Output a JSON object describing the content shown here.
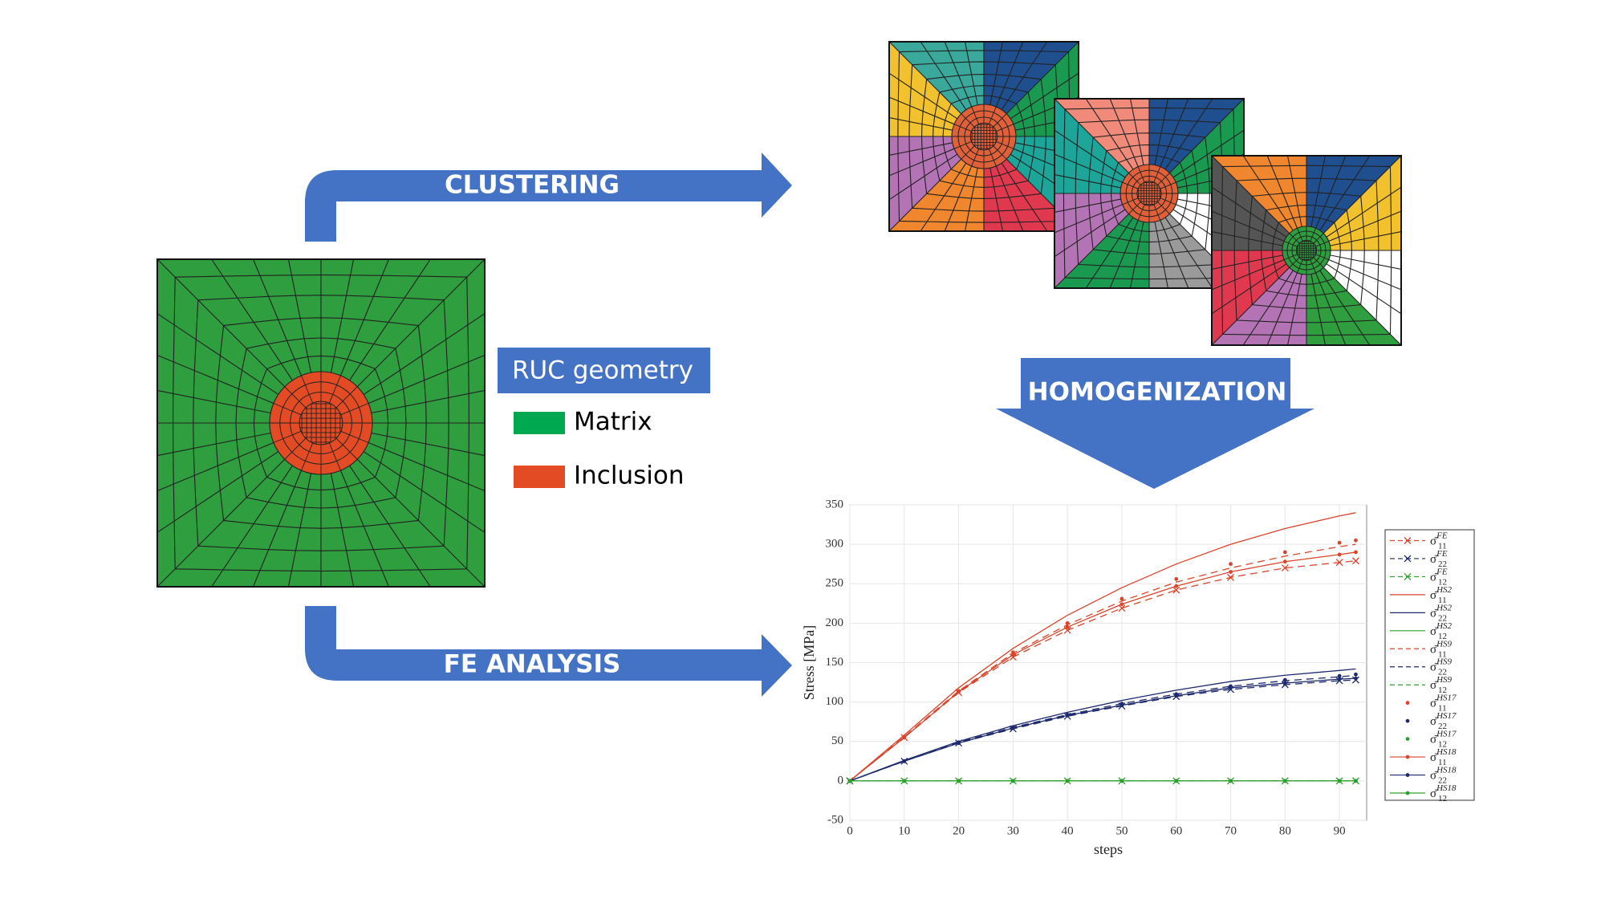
{
  "clustering_label": "CLUSTERING",
  "homogenization_label": "HOMOGENIZATION",
  "fe_analysis_label": "FE ANALYSIS",
  "geometry_key": {
    "title": "RUC geometry",
    "items": [
      "Matrix",
      "Inclusion"
    ]
  },
  "chart_data": {
    "type": "line",
    "xlabel": "steps",
    "ylabel": "Stress [MPa]",
    "xlim": [
      0,
      95
    ],
    "xticks": [
      0,
      10,
      20,
      30,
      40,
      50,
      60,
      70,
      80,
      90
    ],
    "ylim": [
      -50,
      350
    ],
    "yticks": [
      -50,
      0,
      50,
      100,
      150,
      200,
      250,
      300,
      350
    ],
    "grid": true,
    "legend": "right",
    "x": [
      0,
      10,
      20,
      30,
      40,
      50,
      60,
      70,
      80,
      90,
      93
    ],
    "series": [
      {
        "name": {
          "base": "σ̄",
          "sub": "11",
          "sup": "FE"
        },
        "color": "#d9452b",
        "line": "dashed",
        "marker": "x",
        "values": [
          0,
          55,
          112,
          157,
          191,
          219,
          242,
          258,
          270,
          277,
          279
        ]
      },
      {
        "name": {
          "base": "σ̄",
          "sub": "22",
          "sup": "FE"
        },
        "color": "#1f2a6e",
        "line": "dashed",
        "marker": "x",
        "values": [
          0,
          25,
          48,
          66,
          82,
          95,
          107,
          116,
          122,
          127,
          128
        ]
      },
      {
        "name": {
          "base": "σ̄",
          "sub": "12",
          "sup": "FE"
        },
        "color": "#2ca02c",
        "line": "dashed",
        "marker": "x",
        "values": [
          0,
          0,
          0,
          0,
          0,
          0,
          0,
          0,
          0,
          0,
          0
        ]
      },
      {
        "name": {
          "base": "σ̄",
          "sub": "11",
          "sup": "HS2"
        },
        "color": "#d9452b",
        "line": "solid",
        "marker": "none",
        "values": [
          0,
          58,
          118,
          168,
          210,
          245,
          275,
          300,
          320,
          336,
          340
        ]
      },
      {
        "name": {
          "base": "σ̄",
          "sub": "22",
          "sup": "HS2"
        },
        "color": "#1f2a6e",
        "line": "solid",
        "marker": "none",
        "values": [
          0,
          26,
          50,
          70,
          87,
          102,
          115,
          126,
          134,
          140,
          142
        ]
      },
      {
        "name": {
          "base": "σ̄",
          "sub": "12",
          "sup": "HS2"
        },
        "color": "#2ca02c",
        "line": "solid",
        "marker": "none",
        "values": [
          0,
          0,
          0,
          0,
          0,
          0,
          0,
          0,
          0,
          0,
          0
        ]
      },
      {
        "name": {
          "base": "σ̄",
          "sub": "11",
          "sup": "HS9"
        },
        "color": "#d9452b",
        "line": "dashed",
        "marker": "none",
        "values": [
          0,
          56,
          114,
          162,
          198,
          228,
          252,
          270,
          285,
          297,
          300
        ]
      },
      {
        "name": {
          "base": "σ̄",
          "sub": "22",
          "sup": "HS9"
        },
        "color": "#1f2a6e",
        "line": "dashed",
        "marker": "none",
        "values": [
          0,
          25,
          49,
          68,
          84,
          98,
          110,
          120,
          127,
          132,
          134
        ]
      },
      {
        "name": {
          "base": "σ̄",
          "sub": "12",
          "sup": "HS9"
        },
        "color": "#2ca02c",
        "line": "dashed",
        "marker": "none",
        "values": [
          0,
          0,
          0,
          0,
          0,
          0,
          0,
          0,
          0,
          0,
          0
        ]
      },
      {
        "name": {
          "base": "σ̄",
          "sub": "11",
          "sup": "HS17"
        },
        "color": "#d9452b",
        "line": "none",
        "marker": "dot",
        "values": [
          0,
          56,
          114,
          163,
          200,
          231,
          256,
          275,
          290,
          302,
          305
        ]
      },
      {
        "name": {
          "base": "σ̄",
          "sub": "22",
          "sup": "HS17"
        },
        "color": "#1f2a6e",
        "line": "none",
        "marker": "dot",
        "values": [
          0,
          25,
          49,
          68,
          84,
          98,
          110,
          120,
          128,
          133,
          135
        ]
      },
      {
        "name": {
          "base": "σ̄",
          "sub": "12",
          "sup": "HS17"
        },
        "color": "#2ca02c",
        "line": "none",
        "marker": "dot",
        "values": [
          0,
          0,
          0,
          0,
          0,
          0,
          0,
          0,
          0,
          0,
          0
        ]
      },
      {
        "name": {
          "base": "σ̄",
          "sub": "11",
          "sup": "HS18"
        },
        "color": "#d9452b",
        "line": "solid",
        "marker": "dot",
        "values": [
          0,
          55,
          113,
          160,
          195,
          224,
          247,
          265,
          278,
          287,
          290
        ]
      },
      {
        "name": {
          "base": "σ̄",
          "sub": "22",
          "sup": "HS18"
        },
        "color": "#1f2a6e",
        "line": "solid",
        "marker": "dot",
        "values": [
          0,
          25,
          48,
          67,
          83,
          96,
          108,
          118,
          124,
          129,
          130
        ]
      },
      {
        "name": {
          "base": "σ̄",
          "sub": "12",
          "sup": "HS18"
        },
        "color": "#2ca02c",
        "line": "solid",
        "marker": "dot",
        "values": [
          0,
          0,
          0,
          0,
          0,
          0,
          0,
          0,
          0,
          0,
          0
        ]
      }
    ]
  }
}
